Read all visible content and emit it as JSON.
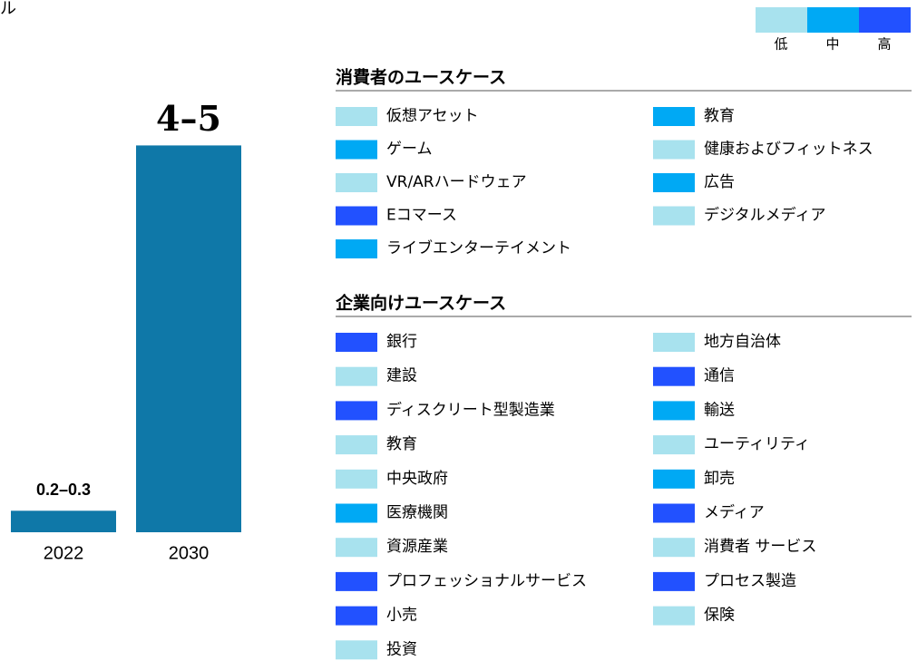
{
  "unit_fragment": "ル",
  "chart_data": {
    "type": "bar",
    "categories": [
      "2022",
      "2030"
    ],
    "values": [
      0.25,
      4.5
    ],
    "value_labels": [
      "0.2–0.3",
      "4–5"
    ],
    "color": "#0f78a8",
    "ylim": [
      0,
      5
    ]
  },
  "legend": [
    {
      "label": "低",
      "color": "#a8e2ee"
    },
    {
      "label": "中",
      "color": "#00a9f4"
    },
    {
      "label": "高",
      "color": "#2251ff"
    }
  ],
  "sections": [
    {
      "title": "消費者のユースケース",
      "columns": [
        [
          {
            "label": "仮想アセット",
            "level": 0
          },
          {
            "label": "ゲーム",
            "level": 1
          },
          {
            "label": "VR/ARハードウェア",
            "level": 0
          },
          {
            "label": "Eコマース",
            "level": 2
          },
          {
            "label": "ライブエンターテイメント",
            "level": 1
          }
        ],
        [
          {
            "label": "教育",
            "level": 1
          },
          {
            "label": "健康およびフィットネス",
            "level": 0
          },
          {
            "label": "広告",
            "level": 1
          },
          {
            "label": "デジタルメディア",
            "level": 0
          }
        ]
      ]
    },
    {
      "title": "企業向けユースケース",
      "columns": [
        [
          {
            "label": "銀行",
            "level": 2
          },
          {
            "label": "建設",
            "level": 0
          },
          {
            "label": "ディスクリート型製造業",
            "level": 2
          },
          {
            "label": "教育",
            "level": 0
          },
          {
            "label": "中央政府",
            "level": 0
          },
          {
            "label": "医療機関",
            "level": 1
          },
          {
            "label": "資源産業",
            "level": 0
          },
          {
            "label": "プロフェッショナルサービス",
            "level": 2
          },
          {
            "label": "小売",
            "level": 2
          },
          {
            "label": "投資",
            "level": 0
          }
        ],
        [
          {
            "label": "地方自治体",
            "level": 0
          },
          {
            "label": "通信",
            "level": 2
          },
          {
            "label": "輸送",
            "level": 1
          },
          {
            "label": "ユーティリティ",
            "level": 0
          },
          {
            "label": "卸売",
            "level": 1
          },
          {
            "label": "メディア",
            "level": 2
          },
          {
            "label": "消費者 サービス",
            "level": 0
          },
          {
            "label": "プロセス製造",
            "level": 2
          },
          {
            "label": "保険",
            "level": 0
          }
        ]
      ]
    }
  ]
}
